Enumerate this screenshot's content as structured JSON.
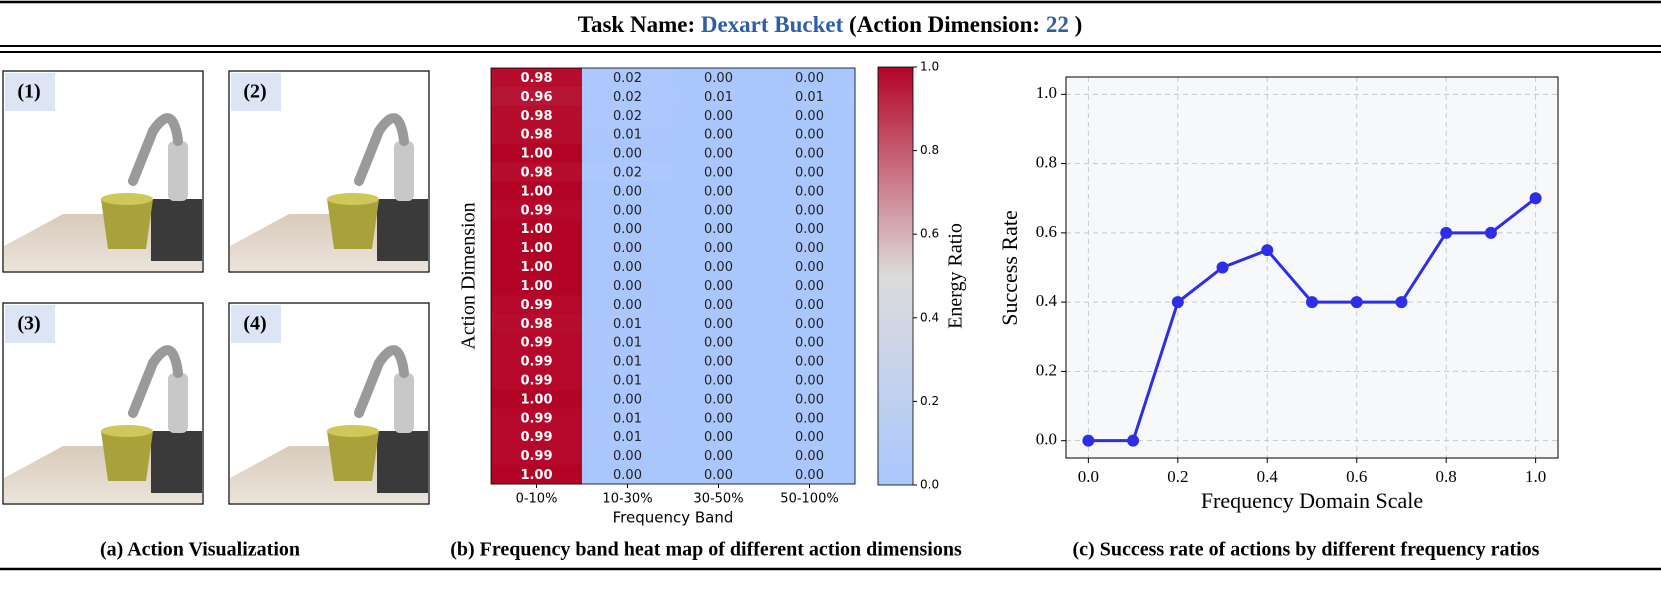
{
  "header": {
    "prefix": "Task Name: ",
    "task": "Dexart Bucket",
    "middle": " (Action Dimension: ",
    "dimension": "22",
    "suffix": " )"
  },
  "panel_a": {
    "labels": [
      "(1)",
      "(2)",
      "(3)",
      "(4)"
    ],
    "caption": "(a) Action Visualization"
  },
  "chart_data": [
    {
      "type": "heatmap",
      "caption": "(b) Frequency band heat map of different action dimensions",
      "x_label": "Frequency Band",
      "y_label": "Action Dimension",
      "categories": [
        "0-10%",
        "10-30%",
        "30-50%",
        "50-100%"
      ],
      "values": [
        [
          0.98,
          0.02,
          0,
          0
        ],
        [
          0.96,
          0.02,
          0.01,
          0.01
        ],
        [
          0.98,
          0.02,
          0,
          0
        ],
        [
          0.98,
          0.01,
          0,
          0
        ],
        [
          1,
          0,
          0,
          0
        ],
        [
          0.98,
          0.02,
          0,
          0
        ],
        [
          1,
          0,
          0,
          0
        ],
        [
          0.99,
          0,
          0,
          0
        ],
        [
          1,
          0,
          0,
          0
        ],
        [
          1,
          0,
          0,
          0
        ],
        [
          1,
          0,
          0,
          0
        ],
        [
          1,
          0,
          0,
          0
        ],
        [
          0.99,
          0,
          0,
          0
        ],
        [
          0.98,
          0.01,
          0,
          0
        ],
        [
          0.99,
          0.01,
          0,
          0
        ],
        [
          0.99,
          0.01,
          0,
          0
        ],
        [
          0.99,
          0.01,
          0,
          0
        ],
        [
          1,
          0,
          0,
          0
        ],
        [
          0.99,
          0.01,
          0,
          0
        ],
        [
          0.99,
          0.01,
          0,
          0
        ],
        [
          0.99,
          0,
          0,
          0
        ],
        [
          1,
          0,
          0,
          0
        ]
      ],
      "value_labels": [
        [
          "0.98",
          "0.02",
          "0.00",
          "0.00"
        ],
        [
          "0.96",
          "0.02",
          "0.01",
          "0.01"
        ],
        [
          "0.98",
          "0.02",
          "0.00",
          "0.00"
        ],
        [
          "0.98",
          "0.01",
          "0.00",
          "0.00"
        ],
        [
          "1.00",
          "0.00",
          "0.00",
          "0.00"
        ],
        [
          "0.98",
          "0.02",
          "0.00",
          "0.00"
        ],
        [
          "1.00",
          "0.00",
          "0.00",
          "0.00"
        ],
        [
          "0.99",
          "0.00",
          "0.00",
          "0.00"
        ],
        [
          "1.00",
          "0.00",
          "0.00",
          "0.00"
        ],
        [
          "1.00",
          "0.00",
          "0.00",
          "0.00"
        ],
        [
          "1.00",
          "0.00",
          "0.00",
          "0.00"
        ],
        [
          "1.00",
          "0.00",
          "0.00",
          "0.00"
        ],
        [
          "0.99",
          "0.00",
          "0.00",
          "0.00"
        ],
        [
          "0.98",
          "0.01",
          "0.00",
          "0.00"
        ],
        [
          "0.99",
          "0.01",
          "0.00",
          "0.00"
        ],
        [
          "0.99",
          "0.01",
          "0.00",
          "0.00"
        ],
        [
          "0.99",
          "0.01",
          "0.00",
          "0.00"
        ],
        [
          "1.00",
          "0.00",
          "0.00",
          "0.00"
        ],
        [
          "0.99",
          "0.01",
          "0.00",
          "0.00"
        ],
        [
          "0.99",
          "0.01",
          "0.00",
          "0.00"
        ],
        [
          "0.99",
          "0.00",
          "0.00",
          "0.00"
        ],
        [
          "1.00",
          "0.00",
          "0.00",
          "0.00"
        ]
      ],
      "colorbar": {
        "label": "Energy Ratio",
        "lim": [
          0,
          1
        ],
        "ticks": [
          {
            "value": 0,
            "label": "0.0"
          },
          {
            "value": 0.2,
            "label": "0.2"
          },
          {
            "value": 0.4,
            "label": "0.4"
          },
          {
            "value": 0.6,
            "label": "0.6"
          },
          {
            "value": 0.8,
            "label": "0.8"
          },
          {
            "value": 1,
            "label": "1.0"
          }
        ],
        "cmap": [
          "#aac7fd",
          "#dddcdc",
          "#b40426"
        ]
      }
    },
    {
      "type": "line",
      "caption": "(c) Success rate of actions by different frequency ratios",
      "x_label": "Frequency Domain Scale",
      "y_label": "Success Rate",
      "x": [
        0,
        0.1,
        0.2,
        0.3,
        0.4,
        0.5,
        0.6,
        0.7,
        0.8,
        0.9,
        1.0
      ],
      "values": [
        0,
        0,
        0.4,
        0.5,
        0.55,
        0.4,
        0.4,
        0.4,
        0.6,
        0.6,
        0.7
      ],
      "color": "#2e2ee8",
      "grid": true,
      "xlim": [
        -0.05,
        1.05
      ],
      "ylim": [
        -0.05,
        1.05
      ],
      "xticks": [
        {
          "value": 0,
          "label": "0.0"
        },
        {
          "value": 0.2,
          "label": "0.2"
        },
        {
          "value": 0.4,
          "label": "0.4"
        },
        {
          "value": 0.6,
          "label": "0.6"
        },
        {
          "value": 0.8,
          "label": "0.8"
        },
        {
          "value": 1,
          "label": "1.0"
        }
      ],
      "yticks": [
        {
          "value": 0,
          "label": "0.0"
        },
        {
          "value": 0.2,
          "label": "0.2"
        },
        {
          "value": 0.4,
          "label": "0.4"
        },
        {
          "value": 0.6,
          "label": "0.6"
        },
        {
          "value": 0.8,
          "label": "0.8"
        },
        {
          "value": 1,
          "label": "1.0"
        }
      ]
    }
  ]
}
